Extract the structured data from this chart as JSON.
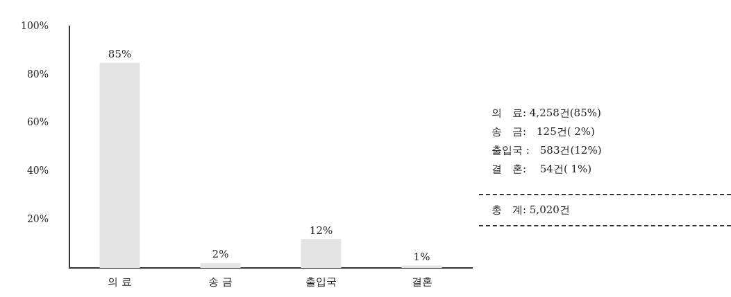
{
  "chart_data": {
    "type": "bar",
    "categories": [
      "의 료",
      "송 금",
      "출입국",
      "결혼"
    ],
    "values": [
      85,
      2,
      12,
      1
    ],
    "color": "#e4e4e4",
    "value_labels": [
      "85%",
      "2%",
      "12%",
      "1%"
    ],
    "ylim": [
      0,
      100
    ],
    "yticks": [
      {
        "value": 20,
        "label": "20%"
      },
      {
        "value": 40,
        "label": "40%"
      },
      {
        "value": 60,
        "label": "60%"
      },
      {
        "value": 80,
        "label": "80%"
      },
      {
        "value": 100,
        "label": "100%"
      }
    ],
    "grid": false,
    "legend": false,
    "annotations": [
      "의　료: 4,258건(85%)",
      "송　금:　125건( 2%)",
      "출입국 :　583건(12%)",
      "결　혼:　 54건( 1%)",
      "총　계: 5,020건"
    ]
  }
}
